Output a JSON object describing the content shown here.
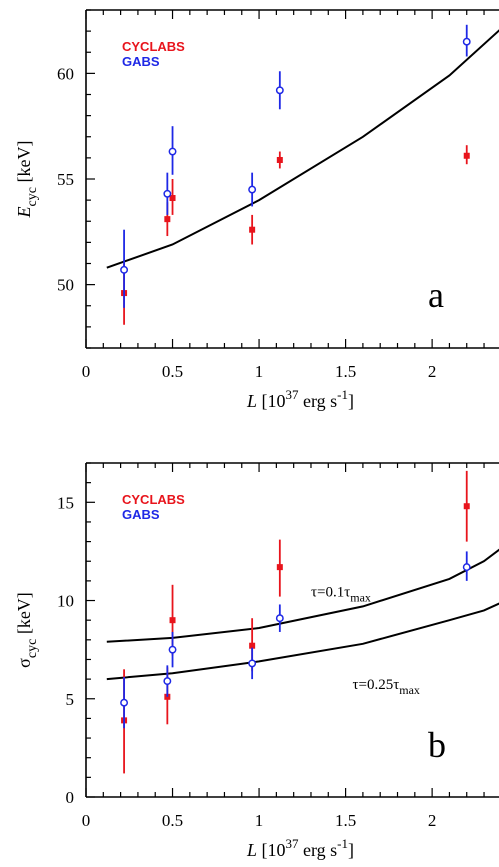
{
  "chart_data": [
    {
      "type": "scatter",
      "panel_letter": "a",
      "xlabel": {
        "main": "L",
        "bracket_open": "[10",
        "sup": "37",
        "unit": " erg s",
        "unit_sup": "-1",
        "bracket_close": "]"
      },
      "ylabel": {
        "main": "E",
        "sub": "cyc",
        "unit": "[keV]"
      },
      "xlim": [
        0,
        2.45
      ],
      "ylim": [
        47,
        63
      ],
      "xticks": [
        0,
        0.5,
        1,
        1.5,
        2
      ],
      "xtick_labels": [
        "0",
        "0.5",
        "1",
        "1.5",
        "2"
      ],
      "yticks": [
        50,
        55,
        60
      ],
      "ytick_labels": [
        "50",
        "55",
        "60"
      ],
      "legend": {
        "position": "top-left",
        "entries": [
          "CYCLABS",
          "GABS"
        ]
      },
      "series": [
        {
          "name": "CYCLABS",
          "color": "#e8141c",
          "marker": "square",
          "points": [
            {
              "x": 0.22,
              "y": 49.6,
              "ylo": 48.1,
              "yhi": 51.0
            },
            {
              "x": 0.47,
              "y": 53.1,
              "ylo": 52.3,
              "yhi": 53.9
            },
            {
              "x": 0.5,
              "y": 54.1,
              "ylo": 53.3,
              "yhi": 55.0
            },
            {
              "x": 0.96,
              "y": 52.6,
              "ylo": 51.9,
              "yhi": 53.3
            },
            {
              "x": 1.12,
              "y": 55.9,
              "ylo": 55.5,
              "yhi": 56.3
            },
            {
              "x": 2.2,
              "y": 56.1,
              "ylo": 55.7,
              "yhi": 56.6
            }
          ]
        },
        {
          "name": "GABS",
          "color": "#1e28e6",
          "marker": "circle",
          "points": [
            {
              "x": 0.22,
              "y": 50.7,
              "ylo": 48.9,
              "yhi": 52.6
            },
            {
              "x": 0.47,
              "y": 54.3,
              "ylo": 53.3,
              "yhi": 55.3
            },
            {
              "x": 0.5,
              "y": 56.3,
              "ylo": 55.2,
              "yhi": 57.5
            },
            {
              "x": 0.96,
              "y": 54.5,
              "ylo": 53.7,
              "yhi": 55.3
            },
            {
              "x": 1.12,
              "y": 59.2,
              "ylo": 58.3,
              "yhi": 60.1
            },
            {
              "x": 2.2,
              "y": 61.5,
              "ylo": 60.8,
              "yhi": 62.3
            }
          ]
        }
      ],
      "curves": [
        {
          "label": "",
          "color": "#000000",
          "x": [
            0.12,
            0.5,
            1.0,
            1.6,
            2.1,
            2.45
          ],
          "y": [
            50.8,
            51.9,
            54.0,
            57.0,
            59.9,
            62.5
          ]
        }
      ]
    },
    {
      "type": "scatter",
      "panel_letter": "b",
      "xlabel": {
        "main": "L",
        "bracket_open": "[10",
        "sup": "37",
        "unit": " erg s",
        "unit_sup": "-1",
        "bracket_close": "]"
      },
      "ylabel": {
        "main": "σ",
        "sub": "cyc",
        "unit": "[keV]"
      },
      "xlim": [
        0,
        2.45
      ],
      "ylim": [
        0,
        17
      ],
      "xticks": [
        0,
        0.5,
        1,
        1.5,
        2
      ],
      "xtick_labels": [
        "0",
        "0.5",
        "1",
        "1.5",
        "2"
      ],
      "yticks": [
        0,
        5,
        10,
        15
      ],
      "ytick_labels": [
        "0",
        "5",
        "10",
        "15"
      ],
      "legend": {
        "position": "top-left",
        "entries": [
          "CYCLABS",
          "GABS"
        ]
      },
      "series": [
        {
          "name": "CYCLABS",
          "color": "#e8141c",
          "marker": "square",
          "points": [
            {
              "x": 0.22,
              "y": 3.9,
              "ylo": 1.2,
              "yhi": 6.5
            },
            {
              "x": 0.47,
              "y": 5.1,
              "ylo": 3.7,
              "yhi": 6.6
            },
            {
              "x": 0.5,
              "y": 9.0,
              "ylo": 7.2,
              "yhi": 10.8
            },
            {
              "x": 0.96,
              "y": 7.7,
              "ylo": 6.4,
              "yhi": 9.1
            },
            {
              "x": 1.12,
              "y": 11.7,
              "ylo": 10.2,
              "yhi": 13.1
            },
            {
              "x": 2.2,
              "y": 14.8,
              "ylo": 13.0,
              "yhi": 16.6
            }
          ]
        },
        {
          "name": "GABS",
          "color": "#1e28e6",
          "marker": "circle",
          "points": [
            {
              "x": 0.22,
              "y": 4.8,
              "ylo": 3.5,
              "yhi": 6.1
            },
            {
              "x": 0.47,
              "y": 5.9,
              "ylo": 5.1,
              "yhi": 6.7
            },
            {
              "x": 0.5,
              "y": 7.5,
              "ylo": 6.6,
              "yhi": 8.4
            },
            {
              "x": 0.96,
              "y": 6.8,
              "ylo": 6.0,
              "yhi": 7.6
            },
            {
              "x": 1.12,
              "y": 9.1,
              "ylo": 8.4,
              "yhi": 9.8
            },
            {
              "x": 2.2,
              "y": 11.7,
              "ylo": 11.0,
              "yhi": 12.5
            }
          ]
        }
      ],
      "curves": [
        {
          "label_main": "τ=0.1τ",
          "label_sub": "max",
          "label_x": 1.3,
          "label_y": 10.2,
          "color": "#000000",
          "x": [
            0.12,
            0.5,
            1.0,
            1.6,
            2.1,
            2.3,
            2.45
          ],
          "y": [
            7.9,
            8.1,
            8.6,
            9.7,
            11.1,
            12.0,
            13.0
          ]
        },
        {
          "label_main": "τ=0.25τ",
          "label_sub": "max",
          "label_x": 1.54,
          "label_y": 5.5,
          "color": "#000000",
          "x": [
            0.12,
            0.5,
            1.0,
            1.6,
            2.1,
            2.3,
            2.45
          ],
          "y": [
            6.0,
            6.3,
            6.9,
            7.8,
            9.0,
            9.5,
            10.1
          ]
        }
      ]
    }
  ]
}
